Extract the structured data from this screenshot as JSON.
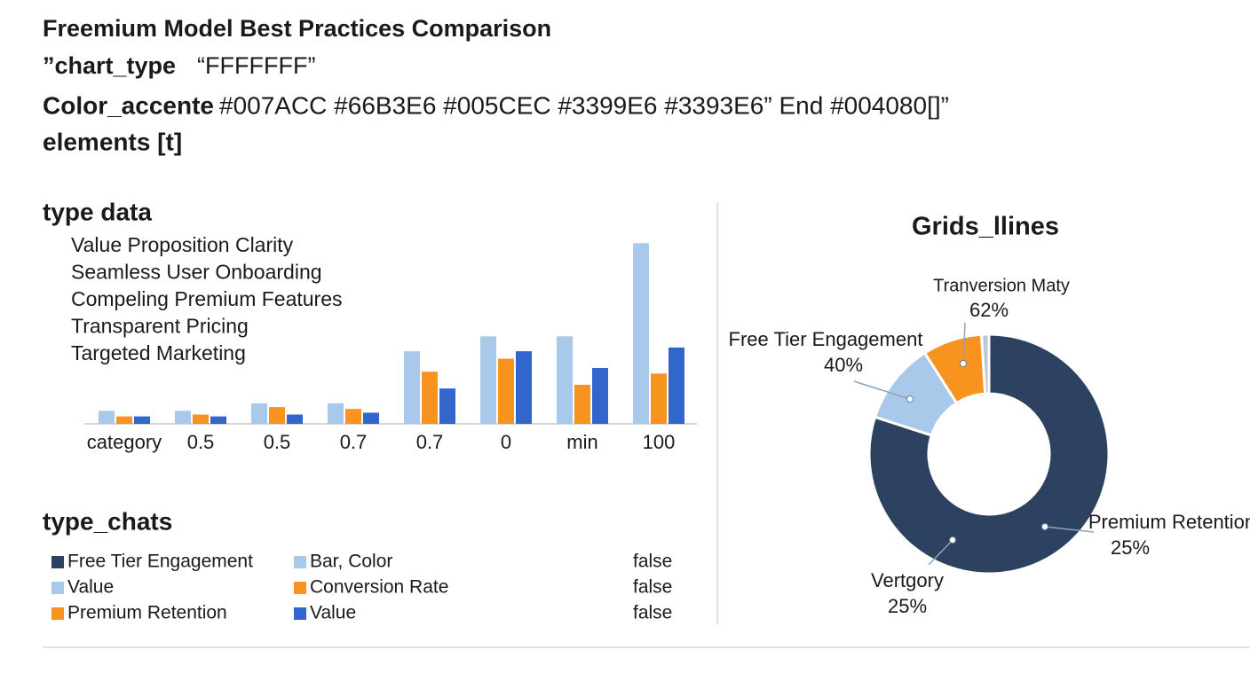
{
  "header": {
    "title": "Freemium Model Best Practices Comparison",
    "line2": [
      "”chart_type",
      "“FFFFFFF”"
    ],
    "line3": [
      "Color_accente",
      "#007ACC  #66B3E6  #005CEC  #3399E6  #3393E6” End #004080[]”"
    ],
    "line4": "elements [t]"
  },
  "data_section": {
    "heading": "type data",
    "items": [
      "Value Proposition Clarity",
      "Seamless User Onboarding",
      "Compeling Premium Features",
      "Transparent Pricing",
      "Targeted Marketing"
    ]
  },
  "chart_data": [
    {
      "type": "bar",
      "categories": [
        "category",
        "0.5",
        "0.5",
        "0.7",
        "0.7",
        "0",
        "min",
        "100"
      ],
      "ylim": [
        0,
        100
      ],
      "series": [
        {
          "color": "#a9c9ea",
          "values": [
            7,
            7,
            11,
            11,
            39,
            47,
            47,
            97
          ]
        },
        {
          "color": "#f7931e",
          "values": [
            4,
            5,
            9,
            8,
            28,
            35,
            21,
            27
          ]
        },
        {
          "color": "#3366cc",
          "values": [
            4,
            4,
            5,
            6,
            19,
            39,
            30,
            41
          ]
        }
      ]
    },
    {
      "type": "pie",
      "title": "Grids_llines",
      "values": [
        80,
        11,
        8,
        1
      ],
      "colors": [
        "#2c4260",
        "#a9c9ea",
        "#f7931e",
        "#b8c8d8"
      ],
      "annotations": [
        {
          "text": "Tranversion Maty",
          "value_label": "62%"
        },
        {
          "text": "Free Tier Engagement",
          "value_label": "40%"
        },
        {
          "text": "Premium Retention",
          "value_label": "25%"
        },
        {
          "text": "Vertgory",
          "value_label": "25%"
        }
      ]
    }
  ],
  "legend": {
    "heading": "type_chats",
    "rows": [
      [
        {
          "label": "Free Tier Engagement",
          "color": "#2c4260"
        },
        {
          "label": "Bar, Color",
          "color": "#a9c9ea"
        },
        "false"
      ],
      [
        {
          "label": "Value",
          "color": "#a9c9ea"
        },
        {
          "label": "Conversion Rate",
          "color": "#f7931e"
        },
        "false"
      ],
      [
        {
          "label": "Premium Retention",
          "color": "#f7931e"
        },
        {
          "label": "Value",
          "color": "#3366cc"
        },
        "false"
      ]
    ]
  }
}
